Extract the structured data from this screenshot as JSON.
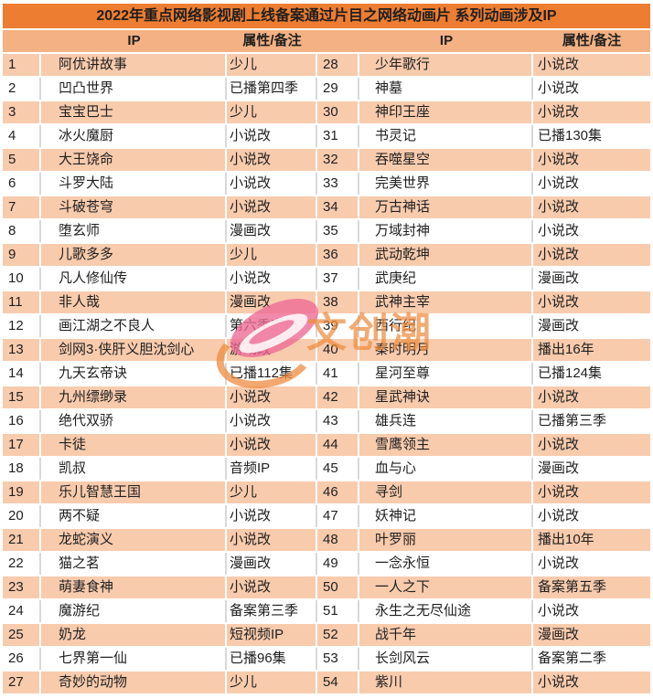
{
  "chart_data": {
    "type": "table",
    "title": "2022年重点网络影视剧上线备案通过片目之网络动画片 系列动画涉及IP",
    "columns": [
      "",
      "IP",
      "属性/备注",
      "",
      "IP",
      "属性/备注"
    ],
    "rows": [
      [
        "1",
        "阿优讲故事",
        "少儿",
        "28",
        "少年歌行",
        "小说改"
      ],
      [
        "2",
        "凹凸世界",
        "已播第四季",
        "29",
        "神墓",
        "小说改"
      ],
      [
        "3",
        "宝宝巴士",
        "少儿",
        "30",
        "神印王座",
        "小说改"
      ],
      [
        "4",
        "冰火魔厨",
        "小说改",
        "31",
        "书灵记",
        "已播130集"
      ],
      [
        "5",
        "大王饶命",
        "小说改",
        "32",
        "吞噬星空",
        "小说改"
      ],
      [
        "6",
        "斗罗大陆",
        "小说改",
        "33",
        "完美世界",
        "小说改"
      ],
      [
        "7",
        "斗破苍穹",
        "小说改",
        "34",
        "万古神话",
        "小说改"
      ],
      [
        "8",
        "堕玄师",
        "漫画改",
        "35",
        "万域封神",
        "小说改"
      ],
      [
        "9",
        "儿歌多多",
        "少儿",
        "36",
        "武动乾坤",
        "小说改"
      ],
      [
        "10",
        "凡人修仙传",
        "小说改",
        "37",
        "武庚纪",
        "漫画改"
      ],
      [
        "11",
        "非人哉",
        "漫画改",
        "38",
        "武神主宰",
        "小说改"
      ],
      [
        "12",
        "画江湖之不良人",
        "第六季定档",
        "39",
        "西行纪",
        "漫画改"
      ],
      [
        "13",
        "剑网3·侠肝义胆沈剑心",
        "游戏改",
        "40",
        "秦时明月",
        "播出16年"
      ],
      [
        "14",
        "九天玄帝诀",
        "已播112集",
        "41",
        "星河至尊",
        "已播124集"
      ],
      [
        "15",
        "九州缥缈录",
        "小说改",
        "42",
        "星武神诀",
        "小说改"
      ],
      [
        "16",
        "绝代双骄",
        "小说改",
        "43",
        "雄兵连",
        "已播第三季"
      ],
      [
        "17",
        "卡徒",
        "小说改",
        "44",
        "雪鹰领主",
        "小说改"
      ],
      [
        "18",
        "凯叔",
        "音频IP",
        "45",
        "血与心",
        "漫画改"
      ],
      [
        "19",
        "乐儿智慧王国",
        "少儿",
        "46",
        "寻剑",
        "小说改"
      ],
      [
        "20",
        "两不疑",
        "小说改",
        "47",
        "妖神记",
        "小说改"
      ],
      [
        "21",
        "龙蛇演义",
        "小说改",
        "48",
        "叶罗丽",
        "播出10年"
      ],
      [
        "22",
        "猫之茗",
        "漫画改",
        "49",
        "一念永恒",
        "小说改"
      ],
      [
        "23",
        "萌妻食神",
        "小说改",
        "50",
        "一人之下",
        "备案第五季"
      ],
      [
        "24",
        "魔游纪",
        "备案第三季",
        "51",
        "永生之无尽仙途",
        "小说改"
      ],
      [
        "25",
        "奶龙",
        "短视频IP",
        "52",
        "战千年",
        "漫画改"
      ],
      [
        "26",
        "七界第一仙",
        "已播96集",
        "53",
        "长剑风云",
        "备案第二季"
      ],
      [
        "27",
        "奇妙的动物",
        "少儿",
        "54",
        "紫川",
        "小说改"
      ]
    ]
  },
  "watermark": {
    "text": "文创潮"
  },
  "colors": {
    "title_bg": "#ED7D31",
    "header_bg": "#F4B183",
    "band_bg": "#F8CBAD",
    "grid_gray": "#D9D9D9",
    "text": "#1F1F1F",
    "watermark_orange": "#EE8C3E",
    "watermark_pink": "#ED6B96"
  }
}
